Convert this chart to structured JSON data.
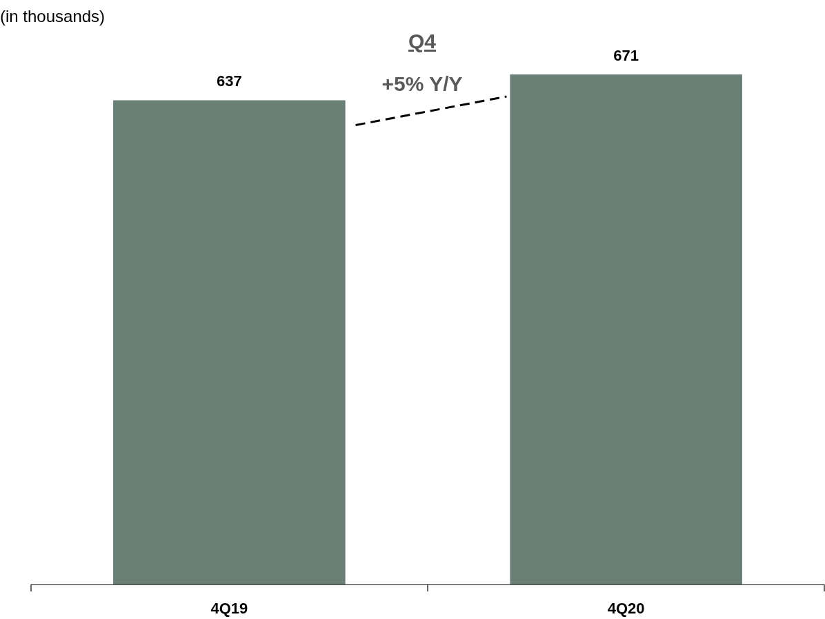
{
  "chart_data": {
    "type": "bar",
    "categories": [
      "4Q19",
      "4Q20"
    ],
    "values": [
      637,
      671
    ],
    "color": "#6a7f76",
    "data_labels": true,
    "tick_labels": "x",
    "annotations": [
      "(in thousands)",
      "Q4",
      "+5% Y/Y"
    ]
  }
}
